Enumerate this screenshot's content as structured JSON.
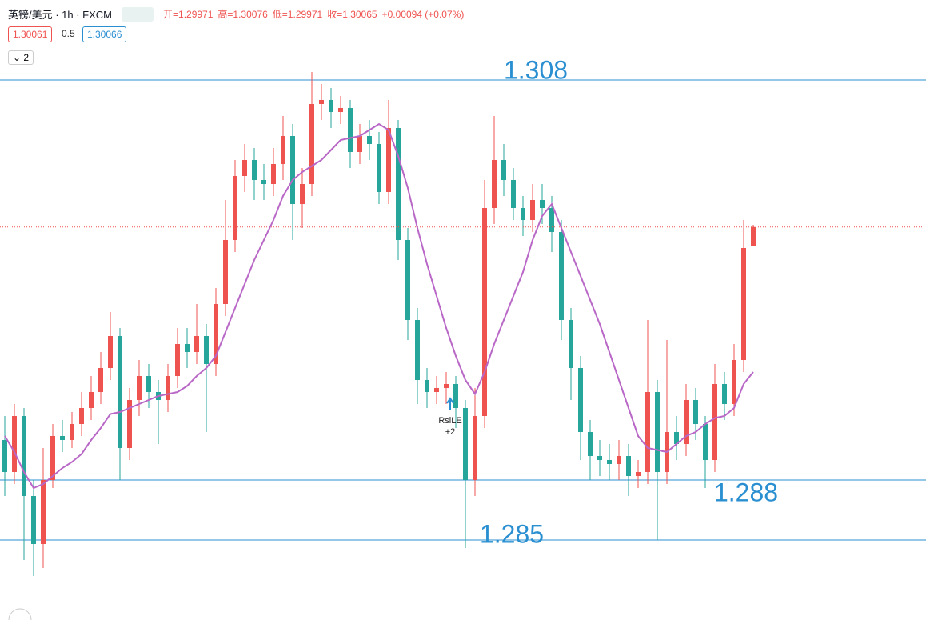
{
  "header": {
    "title": "英镑/美元 · 1h · FXCM",
    "open": "开=1.29971",
    "high": "高=1.30076",
    "low": "低=1.29971",
    "close": "收=1.30065",
    "change": "+0.00094 (+0.07%)",
    "bid": "1.30061",
    "spread": "0.5",
    "ask": "1.30066",
    "layers": "2"
  },
  "chart_data": {
    "type": "candlestick",
    "ylim": [
      1.281,
      1.312
    ],
    "up_color": "#ef5350",
    "down_color": "#26a69a",
    "ma_color": "#b967c7",
    "level_color": "#2a8fd1",
    "open": [
      1.29,
      1.2884,
      1.2912,
      1.2872,
      1.2848,
      1.288,
      1.2902,
      1.29,
      1.2908,
      1.2916,
      1.2924,
      1.2936,
      1.2952,
      1.2896,
      1.292,
      1.2932,
      1.2924,
      1.292,
      1.2932,
      1.2948,
      1.2944,
      1.2952,
      1.2938,
      1.2968,
      1.3,
      1.3032,
      1.304,
      1.303,
      1.3028,
      1.3038,
      1.3052,
      1.3018,
      1.3028,
      1.3068,
      1.307,
      1.3064,
      1.3066,
      1.3044,
      1.3052,
      1.3048,
      1.3024,
      1.3056,
      1.3,
      1.296,
      1.293,
      1.2924,
      1.2926,
      1.2928,
      1.2916,
      1.288,
      1.2912,
      1.3016,
      1.304,
      1.303,
      1.3016,
      1.301,
      1.302,
      1.3016,
      1.3004,
      1.296,
      1.2936,
      1.2904,
      1.2892,
      1.289,
      1.2888,
      1.2892,
      1.2882,
      1.2884,
      1.2924,
      1.2884,
      1.2904,
      1.2898,
      1.292,
      1.2908,
      1.289,
      1.2928,
      1.2918,
      1.294,
      1.29971
    ],
    "high": [
      1.2912,
      1.2918,
      1.2916,
      1.288,
      1.2896,
      1.2908,
      1.291,
      1.2914,
      1.2924,
      1.2932,
      1.2944,
      1.2964,
      1.2956,
      1.2926,
      1.294,
      1.2938,
      1.293,
      1.2938,
      1.2956,
      1.2956,
      1.2968,
      1.2958,
      1.2976,
      1.302,
      1.304,
      1.3048,
      1.3046,
      1.3038,
      1.3046,
      1.3062,
      1.3058,
      1.3036,
      1.3084,
      1.3078,
      1.3076,
      1.3072,
      1.307,
      1.3058,
      1.306,
      1.3054,
      1.307,
      1.306,
      1.3006,
      1.2966,
      1.2936,
      1.2932,
      1.2934,
      1.2932,
      1.292,
      1.2926,
      1.303,
      1.3062,
      1.3048,
      1.3036,
      1.3022,
      1.3028,
      1.3028,
      1.3022,
      1.301,
      1.2966,
      1.2942,
      1.291,
      1.29,
      1.2898,
      1.29,
      1.2898,
      1.289,
      1.296,
      1.293,
      1.295,
      1.2912,
      1.2928,
      1.2926,
      1.2912,
      1.2938,
      1.2934,
      1.2948,
      1.301,
      1.30076
    ],
    "low": [
      1.2872,
      1.2878,
      1.284,
      1.2832,
      1.2836,
      1.2876,
      1.2894,
      1.2896,
      1.2902,
      1.291,
      1.2918,
      1.293,
      1.288,
      1.289,
      1.2912,
      1.2916,
      1.2898,
      1.2914,
      1.2926,
      1.2936,
      1.2938,
      1.2904,
      1.2932,
      1.2962,
      1.2994,
      1.3024,
      1.302,
      1.302,
      1.3022,
      1.303,
      1.3,
      1.3006,
      1.3022,
      1.306,
      1.3056,
      1.3058,
      1.3036,
      1.3038,
      1.304,
      1.3018,
      1.3018,
      1.299,
      1.295,
      1.2918,
      1.2916,
      1.2918,
      1.2918,
      1.2906,
      1.2846,
      1.2872,
      1.2906,
      1.3008,
      1.3022,
      1.301,
      1.3002,
      1.3004,
      1.3008,
      1.2994,
      1.295,
      1.292,
      1.289,
      1.288,
      1.2882,
      1.288,
      1.288,
      1.2872,
      1.2876,
      1.2878,
      1.285,
      1.2878,
      1.289,
      1.2892,
      1.29,
      1.2876,
      1.2884,
      1.291,
      1.2912,
      1.2934,
      1.29971
    ],
    "close": [
      1.2884,
      1.2912,
      1.2872,
      1.2848,
      1.288,
      1.2902,
      1.29,
      1.2908,
      1.2916,
      1.2924,
      1.2936,
      1.2952,
      1.2896,
      1.292,
      1.2932,
      1.2924,
      1.292,
      1.2932,
      1.2948,
      1.2944,
      1.2952,
      1.2938,
      1.2968,
      1.3,
      1.3032,
      1.304,
      1.303,
      1.3028,
      1.3038,
      1.3052,
      1.3018,
      1.3028,
      1.3068,
      1.307,
      1.3064,
      1.3066,
      1.3044,
      1.3052,
      1.3048,
      1.3024,
      1.3056,
      1.3,
      1.296,
      1.293,
      1.2924,
      1.2926,
      1.2928,
      1.2916,
      1.288,
      1.2912,
      1.3016,
      1.304,
      1.303,
      1.3016,
      1.301,
      1.302,
      1.3016,
      1.3004,
      1.296,
      1.2936,
      1.2904,
      1.2892,
      1.289,
      1.2888,
      1.2892,
      1.2882,
      1.2884,
      1.2924,
      1.2884,
      1.2904,
      1.2898,
      1.292,
      1.2908,
      1.289,
      1.2928,
      1.2918,
      1.294,
      1.2996,
      1.30065
    ],
    "ma": [
      1.2902,
      1.2894,
      1.2884,
      1.2876,
      1.2878,
      1.2882,
      1.2886,
      1.2889,
      1.2893,
      1.29,
      1.2906,
      1.2913,
      1.2914,
      1.2916,
      1.2918,
      1.292,
      1.2922,
      1.2923,
      1.2924,
      1.2927,
      1.2932,
      1.2936,
      1.2942,
      1.2954,
      1.2966,
      1.2978,
      1.299,
      1.3,
      1.301,
      1.3022,
      1.303,
      1.3034,
      1.3037,
      1.304,
      1.3045,
      1.305,
      1.3051,
      1.3052,
      1.3055,
      1.3058,
      1.3055,
      1.3042,
      1.3026,
      1.3006,
      1.2988,
      1.2972,
      1.2956,
      1.2942,
      1.293,
      1.2923,
      1.2934,
      1.2948,
      1.296,
      1.2972,
      1.2984,
      1.3,
      1.3012,
      1.3018,
      1.3006,
      1.2994,
      1.2982,
      1.297,
      1.2958,
      1.2944,
      1.293,
      1.2916,
      1.2902,
      1.2896,
      1.2895,
      1.2894,
      1.2898,
      1.2902,
      1.2904,
      1.2908,
      1.2911,
      1.2912,
      1.2916,
      1.2928,
      1.2934
    ],
    "levels": [
      1.308,
      1.288,
      1.285
    ],
    "annotation": {
      "text": "RsiLE",
      "qty": "+2"
    }
  }
}
